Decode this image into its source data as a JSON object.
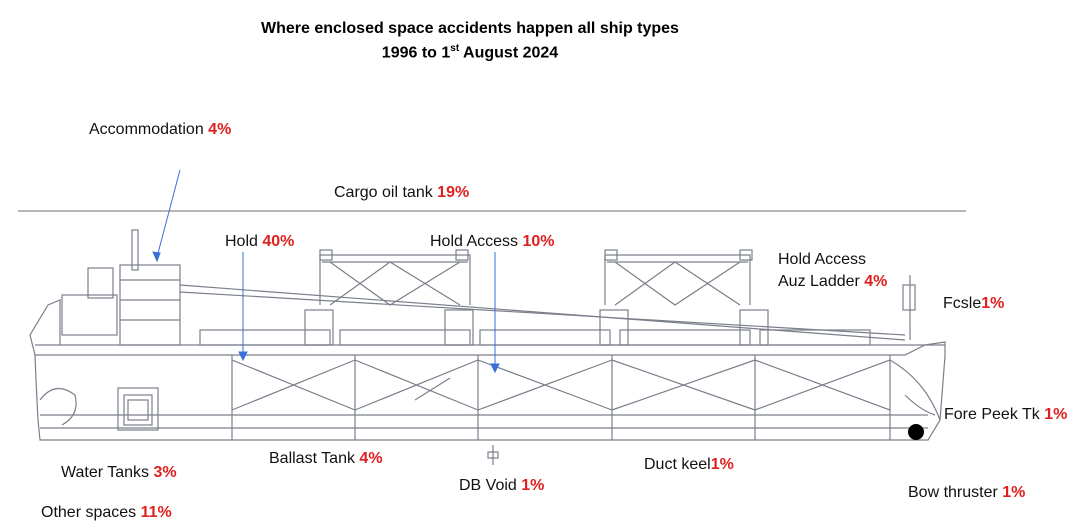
{
  "title": {
    "line1": "Where enclosed space accidents happen all ship types",
    "line2_start": "1996 to  1",
    "line2_sup": "st",
    "line2_end": " August 2024"
  },
  "labels": {
    "accommodation": {
      "text": "Accommodation ",
      "pct": "4%"
    },
    "cargo_oil_tank": {
      "text": "Cargo oil tank ",
      "pct": "19%"
    },
    "hold": {
      "text": "Hold ",
      "pct": "40%"
    },
    "hold_access": {
      "text": "Hold Access ",
      "pct": "10%"
    },
    "hold_access_auz_line1": "Hold Access",
    "hold_access_auz": {
      "text": "Auz Ladder ",
      "pct": "4%"
    },
    "fcsle": {
      "text": "Fcsle",
      "pct": "1%"
    },
    "fore_peek": {
      "text": "Fore Peek Tk ",
      "pct": "1%"
    },
    "water_tanks": {
      "text": "Water Tanks ",
      "pct": "3%"
    },
    "ballast_tank": {
      "text": "Ballast Tank ",
      "pct": "4%"
    },
    "db_void": {
      "text": "DB Void ",
      "pct": "1%"
    },
    "duct_keel": {
      "text": "Duct keel",
      "pct": "1%"
    },
    "bow_thruster": {
      "text": "Bow thruster ",
      "pct": "1%"
    },
    "other_spaces": {
      "text": "Other spaces ",
      "pct": "11%"
    }
  },
  "colors": {
    "percent": "#e02020",
    "arrow": "#3a6fd8",
    "drawing": "#7a7f8a"
  }
}
